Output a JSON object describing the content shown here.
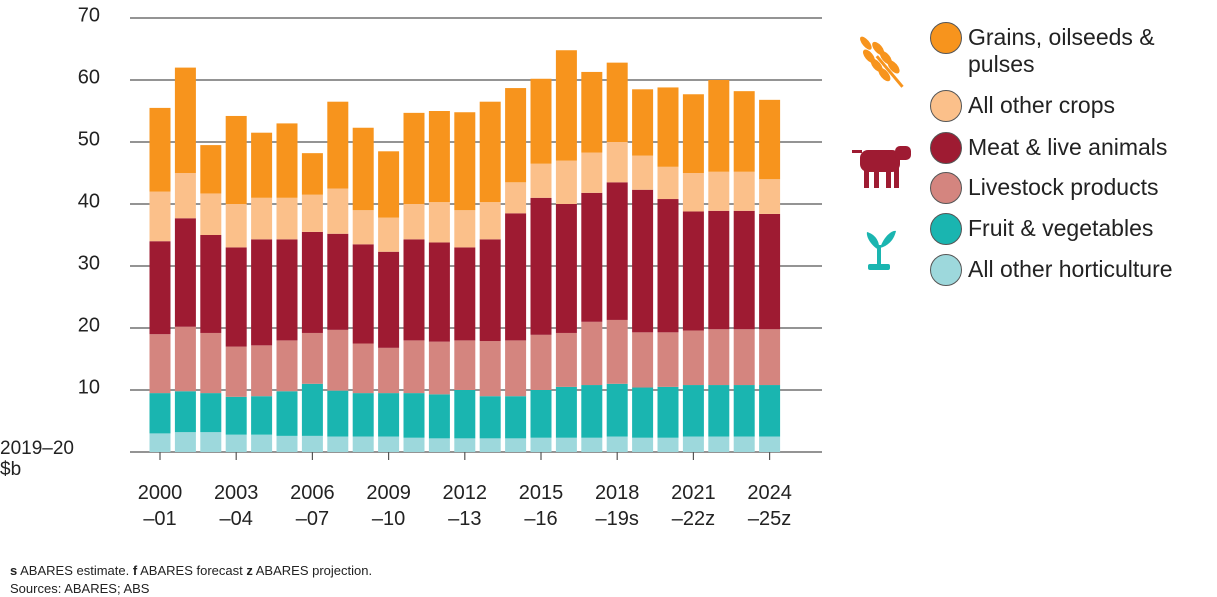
{
  "chart_data": {
    "type": "stacked_bar",
    "ylabel": "2019–20 $b",
    "categories": [
      "2000–01",
      null,
      null,
      "2003–04",
      null,
      null,
      "2006–07",
      null,
      null,
      "2009–10",
      null,
      null,
      "2012–13",
      null,
      null,
      "2015–16",
      null,
      null,
      "2018–19s",
      null,
      null,
      "2021–22z",
      null,
      null,
      "2024–25z"
    ],
    "series": [
      {
        "name": "All other horticulture",
        "color": "#9dd8dc",
        "values": [
          3,
          3.2,
          3.2,
          2.8,
          2.8,
          2.6,
          2.6,
          2.5,
          2.5,
          2.5,
          2.3,
          2.2,
          2.2,
          2.2,
          2.2,
          2.3,
          2.3,
          2.3,
          2.5,
          2.3,
          2.3,
          2.5,
          2.5,
          2.5,
          2.5
        ]
      },
      {
        "name": "Fruit & vegetables",
        "color": "#1ab5b0",
        "values": [
          6.5,
          6.6,
          6.3,
          6.1,
          6.2,
          7.2,
          8.4,
          7.4,
          7,
          7,
          7.2,
          7.1,
          7.8,
          6.8,
          6.8,
          7.7,
          8.2,
          8.5,
          8.5,
          8.1,
          8.2,
          8.3,
          8.3,
          8.3,
          8.3
        ]
      },
      {
        "name": "Livestock products",
        "color": "#d4857f",
        "values": [
          9.5,
          10.4,
          9.7,
          8.1,
          8.2,
          8.2,
          8.2,
          9.8,
          8,
          7.3,
          8.5,
          8.5,
          8,
          8.9,
          9,
          8.9,
          8.7,
          10.2,
          10.3,
          8.9,
          8.8,
          8.8,
          9,
          9,
          9
        ]
      },
      {
        "name": "Meat & live animals",
        "color": "#9e1b32",
        "values": [
          15,
          17.5,
          15.8,
          16,
          17.1,
          16.3,
          16.3,
          15.5,
          16,
          15.5,
          16.3,
          16,
          15,
          16.4,
          20.5,
          22.1,
          20.8,
          20.8,
          22.2,
          23,
          21.5,
          19.2,
          19.1,
          19.1,
          18.6
        ]
      },
      {
        "name": "All other crops",
        "color": "#fbc08a",
        "values": [
          8,
          7.3,
          6.7,
          7,
          6.7,
          6.7,
          6,
          7.3,
          5.5,
          5.5,
          5.7,
          6.5,
          6,
          6,
          5,
          5.5,
          7,
          6.5,
          6.5,
          5.5,
          5.2,
          6.2,
          6.3,
          6.3,
          5.6
        ]
      },
      {
        "name": "Grains, oilseeds & pulses",
        "color": "#f7941d",
        "values": [
          13.5,
          17,
          7.8,
          14.2,
          10.5,
          12,
          6.7,
          14,
          13.3,
          10.7,
          14.7,
          14.7,
          15.8,
          16.2,
          15.2,
          13.7,
          17.8,
          13,
          12.8,
          10.7,
          12.8,
          12.7,
          14.8,
          13,
          12.8
        ]
      }
    ],
    "ylim": [
      0,
      70
    ],
    "yticks": [
      10,
      20,
      30,
      40,
      50,
      60,
      70
    ],
    "grid": true
  },
  "footnote": [
    {
      "key": "s",
      "text": "ABARES estimate."
    },
    {
      "key": "f",
      "text": "ABARES forecast"
    },
    {
      "key": "z",
      "text": "ABARES projection."
    }
  ],
  "sources": "Sources: ABARES; ABS"
}
